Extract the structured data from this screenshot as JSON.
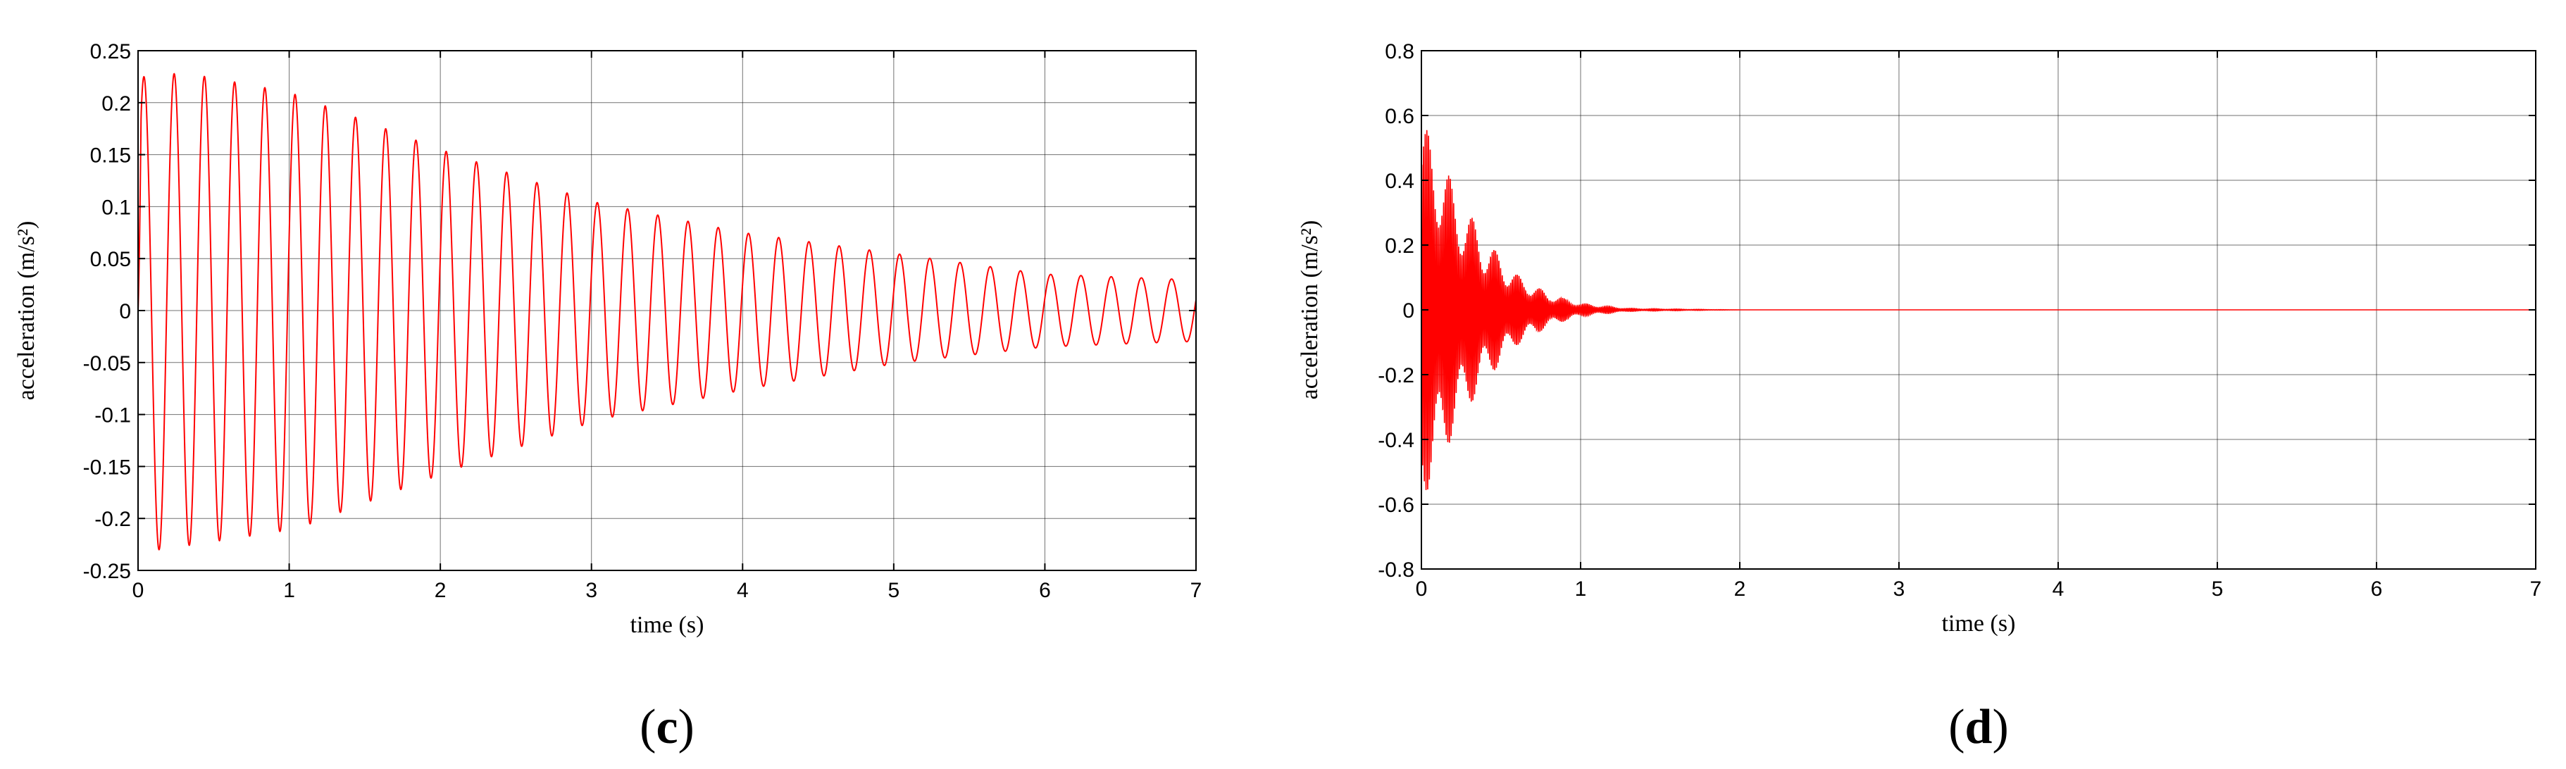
{
  "chart_data": [
    {
      "type": "line",
      "panel_label": "(c)",
      "xlabel": "time (s)",
      "ylabel": "acceleration (m/s²)",
      "xlim": [
        0,
        7
      ],
      "ylim": [
        -0.25,
        0.25
      ],
      "xticks": [
        0,
        1,
        2,
        3,
        4,
        5,
        6,
        7
      ],
      "yticks": [
        -0.25,
        -0.2,
        -0.15,
        -0.1,
        -0.05,
        0,
        0.05,
        0.1,
        0.15,
        0.2,
        0.25
      ],
      "grid": true,
      "color": "#ff0000",
      "signal": {
        "description_values": "damped sinusoid read from plot",
        "cycles_in_range": 35,
        "positive_peaks": [
          {
            "t": 0.05,
            "a": 0.225
          },
          {
            "t": 0.25,
            "a": 0.228
          },
          {
            "t": 0.45,
            "a": 0.225
          },
          {
            "t": 1.0,
            "a": 0.21
          },
          {
            "t": 2.0,
            "a": 0.155
          },
          {
            "t": 3.0,
            "a": 0.105
          },
          {
            "t": 4.0,
            "a": 0.075
          },
          {
            "t": 5.0,
            "a": 0.055
          },
          {
            "t": 6.0,
            "a": 0.035
          },
          {
            "t": 6.9,
            "a": 0.03
          }
        ],
        "negative_peaks": [
          {
            "t": 0.15,
            "a": -0.23
          },
          {
            "t": 1.05,
            "a": -0.21
          },
          {
            "t": 2.05,
            "a": -0.155
          },
          {
            "t": 3.05,
            "a": -0.105
          },
          {
            "t": 4.05,
            "a": -0.075
          },
          {
            "t": 5.05,
            "a": -0.05
          },
          {
            "t": 6.0,
            "a": -0.035
          },
          {
            "t": 6.9,
            "a": -0.03
          }
        ]
      }
    },
    {
      "type": "line",
      "panel_label": "(d)",
      "xlabel": "time (s)",
      "ylabel": "acceleration (m/s²)",
      "xlim": [
        0,
        7
      ],
      "ylim": [
        -0.8,
        0.8
      ],
      "xticks": [
        0,
        1,
        2,
        3,
        4,
        5,
        6,
        7
      ],
      "yticks": [
        -0.8,
        -0.6,
        -0.4,
        -0.2,
        0,
        0.2,
        0.4,
        0.6,
        0.8
      ],
      "grid": true,
      "color": "#ff0000",
      "signal": {
        "envelope": [
          {
            "t": 0.0,
            "a": 0.58
          },
          {
            "t": 0.1,
            "a": 0.52
          },
          {
            "t": 0.2,
            "a": 0.38
          },
          {
            "t": 0.4,
            "a": 0.22
          },
          {
            "t": 0.6,
            "a": 0.11
          },
          {
            "t": 0.8,
            "a": 0.05
          },
          {
            "t": 1.0,
            "a": 0.02
          },
          {
            "t": 1.3,
            "a": 0.005
          },
          {
            "t": 2.0,
            "a": 0.0
          },
          {
            "t": 7.0,
            "a": 0.0
          }
        ]
      }
    }
  ]
}
